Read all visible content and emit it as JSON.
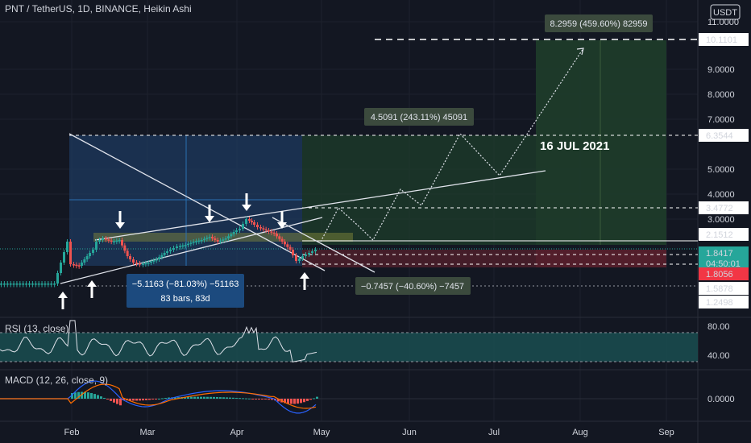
{
  "header": {
    "symbol_title": "PNT / TetherUS, 1D, BINANCE, Heikin Ashi",
    "currency": "USDT"
  },
  "chart_data": {
    "type": "candlestick",
    "title": "PNT / TetherUS, 1D, BINANCE, Heikin Ashi",
    "x_ticks": [
      "Feb",
      "Mar",
      "Apr",
      "May",
      "Jun",
      "Jul",
      "Aug",
      "Sep"
    ],
    "y_scale": "log",
    "price_ticks": [
      "11.0000",
      "9.0000",
      "8.0000",
      "7.0000",
      "5.0000",
      "4.0000",
      "3.0000",
      "0.0000"
    ],
    "price_ticks_shown": [
      "11.0000",
      "9.0000",
      "8.0000",
      "7.0000",
      "5.0000",
      "4.0000",
      "3.0000"
    ],
    "price_labels": [
      {
        "value": "10.1101",
        "style": "white"
      },
      {
        "value": "6.3544",
        "style": "white"
      },
      {
        "value": "3.4772",
        "style": "white"
      },
      {
        "value": "2.1512",
        "style": "white"
      },
      {
        "value": "1.8417",
        "style": "teal",
        "sub": "04:50:01"
      },
      {
        "value": "1.8056",
        "style": "red"
      },
      {
        "value": "1.5878",
        "style": "white"
      },
      {
        "value": "1.2498",
        "style": "white"
      }
    ],
    "annotations": {
      "date_text": "16 JUL 2021",
      "target_box_1": "8.2959 (459.60%) 82959",
      "target_box_2": "4.5091 (243.11%) 45091",
      "drop_box_line1": "−5.1163 (−81.03%) −51163",
      "drop_box_line2": "83 bars, 83d",
      "loss_box": "−0.7457 (−40.60%) −7457"
    },
    "rsi": {
      "label": "RSI (13, close)",
      "ticks": [
        "80.00",
        "40.00"
      ]
    },
    "macd": {
      "label": "MACD (12, 26, close, 9)",
      "ticks": [
        "0.0000"
      ]
    },
    "colors": {
      "background": "#131722",
      "up": "#26a69a",
      "down": "#ef5350",
      "teal_label": "#26a69a",
      "red_label": "#f23645",
      "blue_zone": "#1e3a5f",
      "green_zone": "#1d3b2a"
    }
  }
}
